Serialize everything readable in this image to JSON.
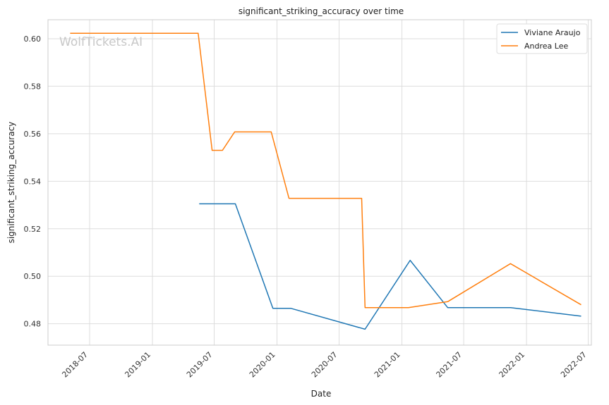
{
  "chart_data": {
    "type": "line",
    "title": "significant_striking_accuracy over time",
    "xlabel": "Date",
    "ylabel": "significant_striking_accuracy",
    "watermark": "WolfTickets.AI",
    "xlim": [
      "2018-03-01",
      "2022-07-10"
    ],
    "ylim": [
      0.471,
      0.608
    ],
    "x_ticks": [
      "2018-07",
      "2019-01",
      "2019-07",
      "2020-01",
      "2020-07",
      "2021-01",
      "2021-07",
      "2022-01",
      "2022-07"
    ],
    "y_ticks": [
      "0.48",
      "0.50",
      "0.52",
      "0.54",
      "0.56",
      "0.58",
      "0.60"
    ],
    "grid": true,
    "legend_position": "top-right",
    "series": [
      {
        "name": "Viviane Araujo",
        "color": "#1f77b4",
        "points": [
          {
            "x": "2019-05-18",
            "y": 0.5305
          },
          {
            "x": "2019-09-01",
            "y": 0.5305
          },
          {
            "x": "2019-12-20",
            "y": 0.4865
          },
          {
            "x": "2020-02-10",
            "y": 0.4865
          },
          {
            "x": "2020-09-15",
            "y": 0.4777
          },
          {
            "x": "2021-01-25",
            "y": 0.5067
          },
          {
            "x": "2021-05-15",
            "y": 0.4868
          },
          {
            "x": "2021-11-15",
            "y": 0.4868
          },
          {
            "x": "2022-06-10",
            "y": 0.4832
          }
        ]
      },
      {
        "name": "Andrea Lee",
        "color": "#ff7f0e",
        "points": [
          {
            "x": "2018-05-05",
            "y": 0.6023
          },
          {
            "x": "2019-05-15",
            "y": 0.6023
          },
          {
            "x": "2019-06-25",
            "y": 0.553
          },
          {
            "x": "2019-07-25",
            "y": 0.553
          },
          {
            "x": "2019-08-30",
            "y": 0.5608
          },
          {
            "x": "2019-12-15",
            "y": 0.5608
          },
          {
            "x": "2020-02-05",
            "y": 0.5328
          },
          {
            "x": "2020-09-05",
            "y": 0.5328
          },
          {
            "x": "2020-09-15",
            "y": 0.4868
          },
          {
            "x": "2021-01-20",
            "y": 0.4868
          },
          {
            "x": "2021-05-15",
            "y": 0.4893
          },
          {
            "x": "2021-11-15",
            "y": 0.5053
          },
          {
            "x": "2022-06-10",
            "y": 0.488
          }
        ]
      }
    ]
  }
}
